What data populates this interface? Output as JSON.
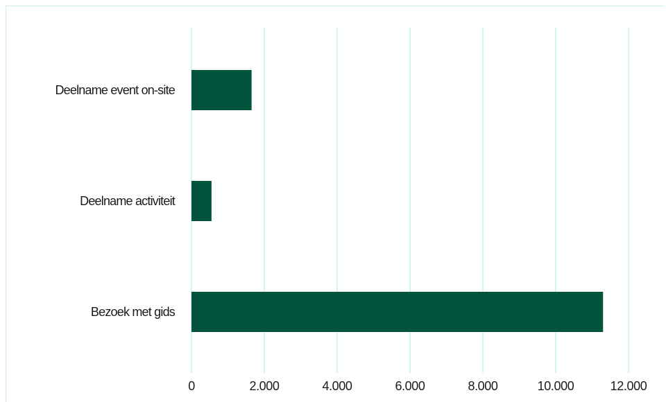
{
  "chart_data": {
    "type": "bar",
    "orientation": "horizontal",
    "categories": [
      "Deelname event on-site",
      "Deelname activiteit",
      "Bezoek met gids"
    ],
    "values": [
      1650,
      550,
      11300
    ],
    "xlim": [
      0,
      12000
    ],
    "xticks": [
      0,
      2000,
      4000,
      6000,
      8000,
      10000,
      12000
    ],
    "xtick_labels": [
      "0",
      "2.000",
      "4.000",
      "6.000",
      "8.000",
      "10.000",
      "12.000"
    ],
    "title": "",
    "xlabel": "",
    "ylabel": "",
    "grid": "vertical",
    "legend": "none",
    "colors": {
      "bar": "#02533c",
      "grid": "#c6f0e6",
      "frame": "#ccefe6",
      "text": "#1a1a1a"
    }
  }
}
